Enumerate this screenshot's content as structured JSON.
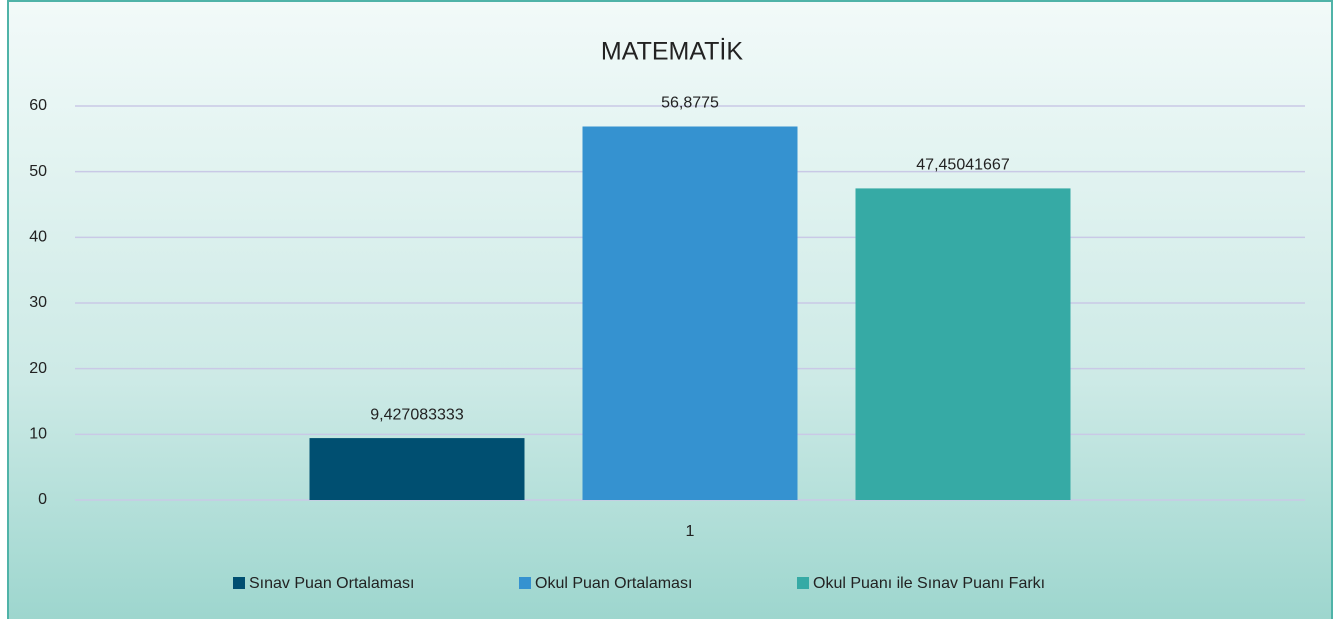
{
  "chart_data": {
    "type": "bar",
    "title": "MATEMATİK",
    "categories": [
      "1"
    ],
    "series": [
      {
        "name": "Sınav Puan Ortalaması",
        "color": "#004f71",
        "values": [
          9.427083333
        ],
        "value_labels": [
          "9,427083333"
        ]
      },
      {
        "name": "Okul Puan Ortalaması",
        "color": "#3592d0",
        "values": [
          56.8775
        ],
        "value_labels": [
          "56,8775"
        ]
      },
      {
        "name": "Okul Puanı ile Sınav Puanı Farkı",
        "color": "#36aaa5",
        "values": [
          47.45041667
        ],
        "value_labels": [
          "47,45041667"
        ]
      }
    ],
    "ylim": [
      0,
      60
    ],
    "yticks": [
      0,
      10,
      20,
      30,
      40,
      50,
      60
    ],
    "grid": true,
    "legend": "bottom"
  }
}
